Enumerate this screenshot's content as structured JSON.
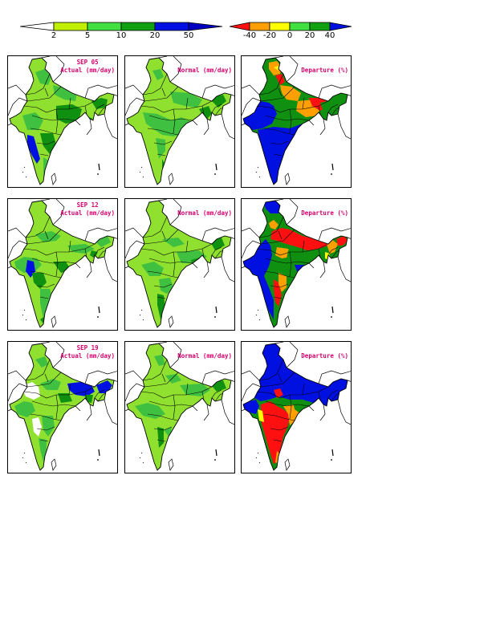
{
  "legends": {
    "rainfall": {
      "ticks": [
        "2",
        "5",
        "10",
        "20",
        "50"
      ],
      "colors": [
        "#ffffff",
        "#c0f000",
        "#40e040",
        "#10a010",
        "#0010e0",
        "#0000d0"
      ]
    },
    "departure": {
      "ticks": [
        "-40",
        "-20",
        "0",
        "20",
        "40"
      ],
      "colors": [
        "#ff1010",
        "#ffa000",
        "#ffff00",
        "#40e040",
        "#10a010",
        "#0010e0"
      ]
    }
  },
  "rows": [
    {
      "date": "SEP 05",
      "panels": [
        {
          "title": "Actual (mm/day)",
          "scheme": "actual"
        },
        {
          "title": "Normal (mm/day)",
          "scheme": "normal"
        },
        {
          "title": "Departure (%)",
          "scheme": "departure"
        }
      ]
    },
    {
      "date": "SEP 12",
      "panels": [
        {
          "title": "Actual (mm/day)",
          "scheme": "actual"
        },
        {
          "title": "Normal (mm/day)",
          "scheme": "normal"
        },
        {
          "title": "Departure (%)",
          "scheme": "departure"
        }
      ]
    },
    {
      "date": "SEP 19",
      "panels": [
        {
          "title": "Actual (mm/day)",
          "scheme": "actual"
        },
        {
          "title": "Normal (mm/day)",
          "scheme": "normal"
        },
        {
          "title": "Departure (%)",
          "scheme": "departure"
        }
      ]
    }
  ],
  "colors": {
    "title": "#d6006e",
    "land_base_actual": "#90e030",
    "land_base_normal": "#90e030",
    "green": "#40c040",
    "dark_green": "#109010",
    "blue": "#0010e0",
    "red": "#ff1010",
    "orange": "#ffa000",
    "yellow": "#ffff00"
  }
}
